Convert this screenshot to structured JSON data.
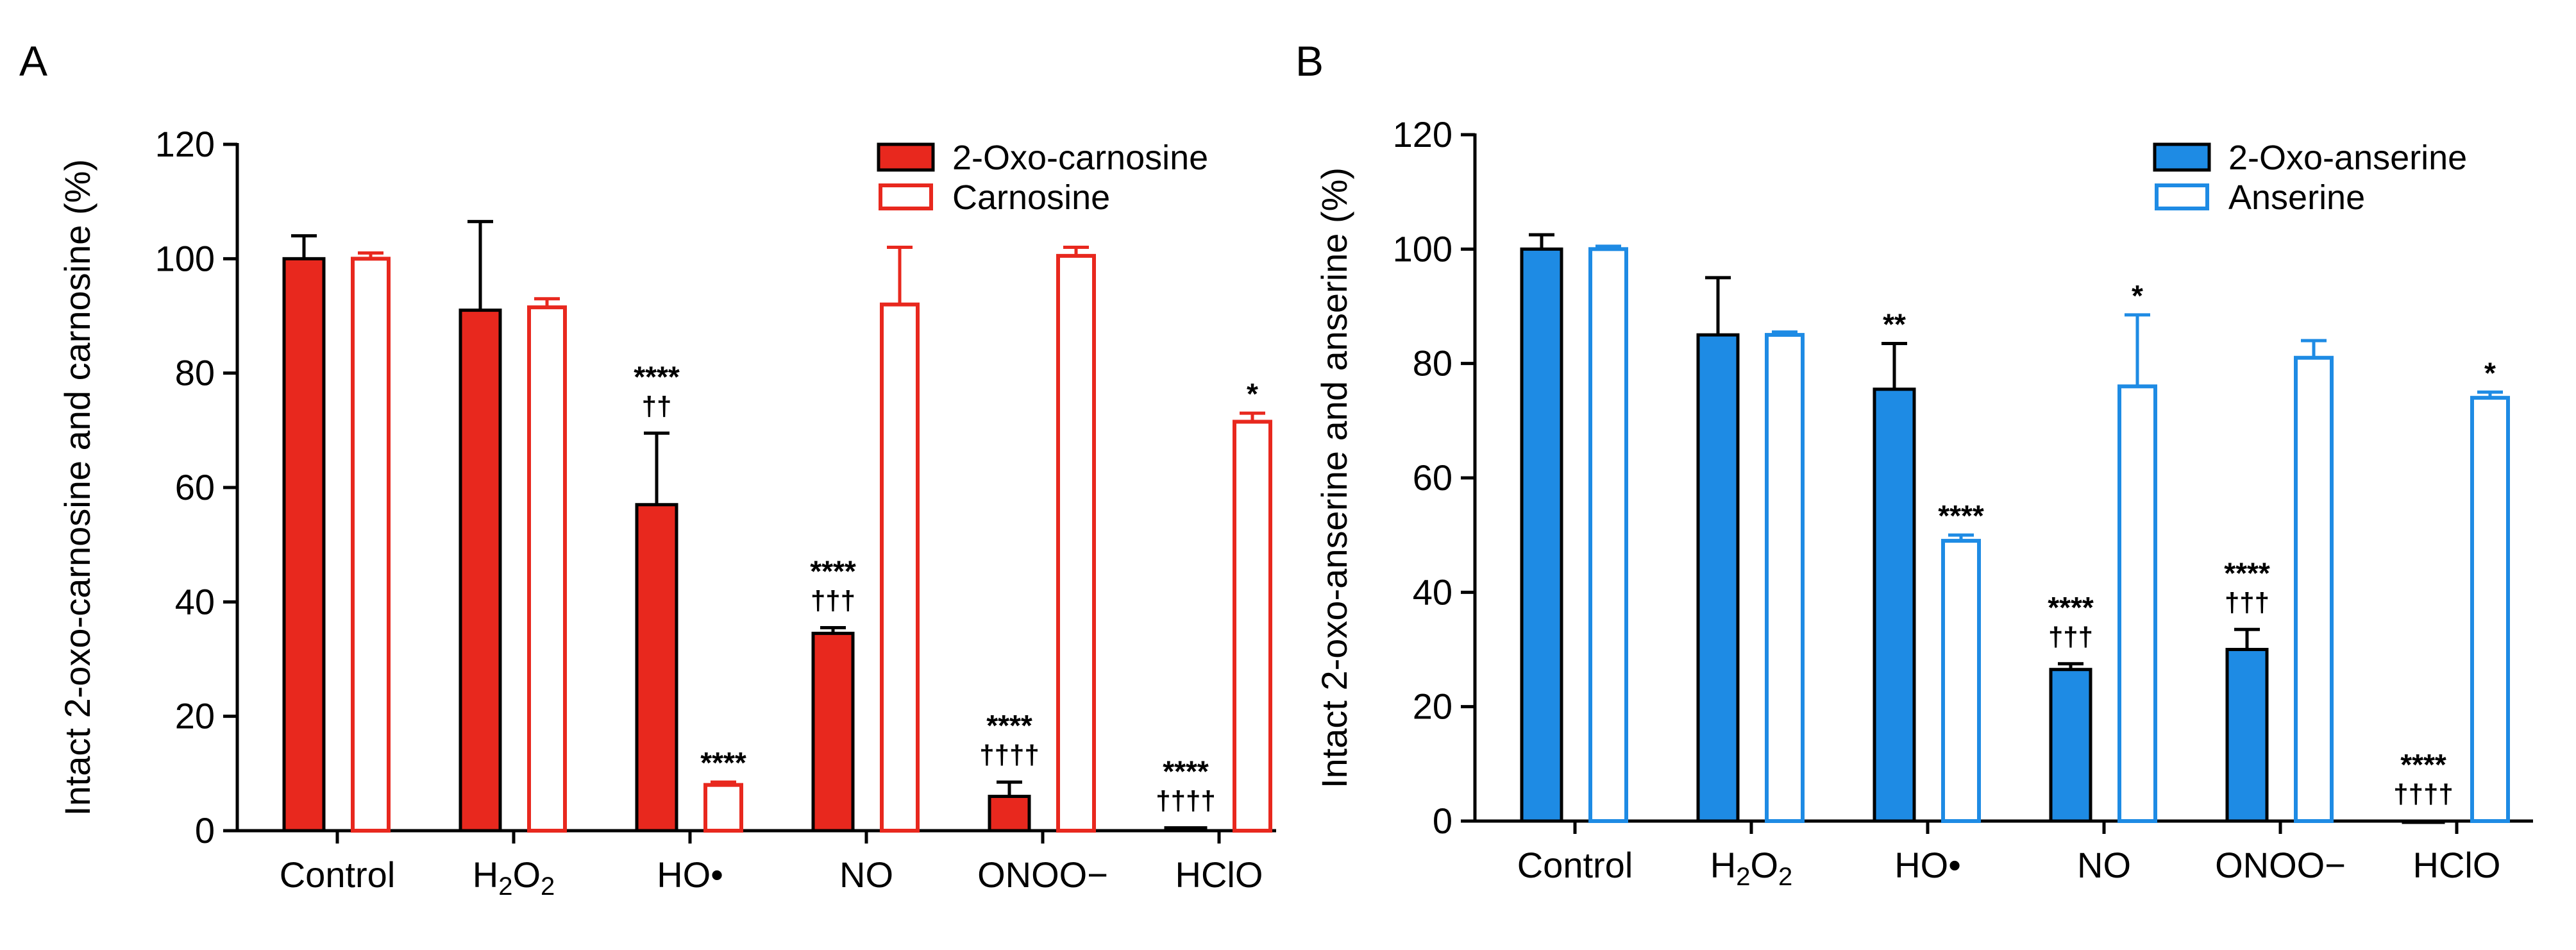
{
  "colors": {
    "carnosine": "#e8281e",
    "anserine": "#1e8be4",
    "axis": "#000000",
    "background": "#ffffff"
  },
  "chart_data": [
    {
      "panel": "A",
      "type": "bar",
      "title": "",
      "xlabel": "",
      "ylabel": "Intact 2-oxo-carnosine and carnosine (%)",
      "ylim": [
        0,
        120
      ],
      "yticks": [
        "0",
        "20",
        "40",
        "60",
        "80",
        "100",
        "120"
      ],
      "categories": [
        "Control",
        "H2O2",
        "HO•",
        "NO",
        "ONOO−",
        "HClO"
      ],
      "legend_position": "top-right",
      "series": [
        {
          "name": "2-Oxo-carnosine",
          "style": "filled",
          "values": [
            100,
            91,
            57,
            34.5,
            6,
            0.5
          ],
          "errors": [
            4,
            15.5,
            12.5,
            1,
            2.5,
            0
          ]
        },
        {
          "name": "Carnosine",
          "style": "open",
          "values": [
            100,
            91.5,
            8,
            92,
            100.5,
            71.5
          ],
          "errors": [
            1,
            1.5,
            0.5,
            10,
            1.5,
            1.5
          ]
        }
      ],
      "annotations": [
        {
          "category_index": 2,
          "series": 0,
          "lines": [
            "****",
            "††"
          ]
        },
        {
          "category_index": 2,
          "series": 1,
          "lines": [
            "****"
          ]
        },
        {
          "category_index": 3,
          "series": 0,
          "lines": [
            "****",
            "†††"
          ]
        },
        {
          "category_index": 4,
          "series": 0,
          "lines": [
            "****",
            "††††"
          ]
        },
        {
          "category_index": 5,
          "series": 0,
          "lines": [
            "****",
            "††††"
          ]
        },
        {
          "category_index": 5,
          "series": 1,
          "lines": [
            "*"
          ]
        }
      ]
    },
    {
      "panel": "B",
      "type": "bar",
      "title": "",
      "xlabel": "",
      "ylabel": "Intact 2-oxo-anserine and anserine (%)",
      "ylim": [
        0,
        120
      ],
      "yticks": [
        "0",
        "20",
        "40",
        "60",
        "80",
        "100",
        "120"
      ],
      "categories": [
        "Control",
        "H2O2",
        "HO•",
        "NO",
        "ONOO−",
        "HClO"
      ],
      "legend_position": "top-right",
      "series": [
        {
          "name": "2-Oxo-anserine",
          "style": "filled",
          "values": [
            100,
            85,
            75.5,
            26.5,
            30,
            0
          ],
          "errors": [
            2.5,
            10,
            8,
            1,
            3.5,
            0
          ]
        },
        {
          "name": "Anserine",
          "style": "open",
          "values": [
            100,
            85,
            49,
            76,
            81,
            74
          ],
          "errors": [
            0.5,
            0.5,
            1,
            12.5,
            3,
            1
          ]
        }
      ],
      "annotations": [
        {
          "category_index": 2,
          "series": 0,
          "lines": [
            "**"
          ]
        },
        {
          "category_index": 2,
          "series": 1,
          "lines": [
            "****"
          ]
        },
        {
          "category_index": 3,
          "series": 0,
          "lines": [
            "****",
            "†††"
          ]
        },
        {
          "category_index": 3,
          "series": 1,
          "lines": [
            "*"
          ]
        },
        {
          "category_index": 4,
          "series": 0,
          "lines": [
            "****",
            "†††"
          ]
        },
        {
          "category_index": 5,
          "series": 0,
          "lines": [
            "****",
            "††††"
          ]
        },
        {
          "category_index": 5,
          "series": 1,
          "lines": [
            "*"
          ]
        }
      ]
    }
  ]
}
